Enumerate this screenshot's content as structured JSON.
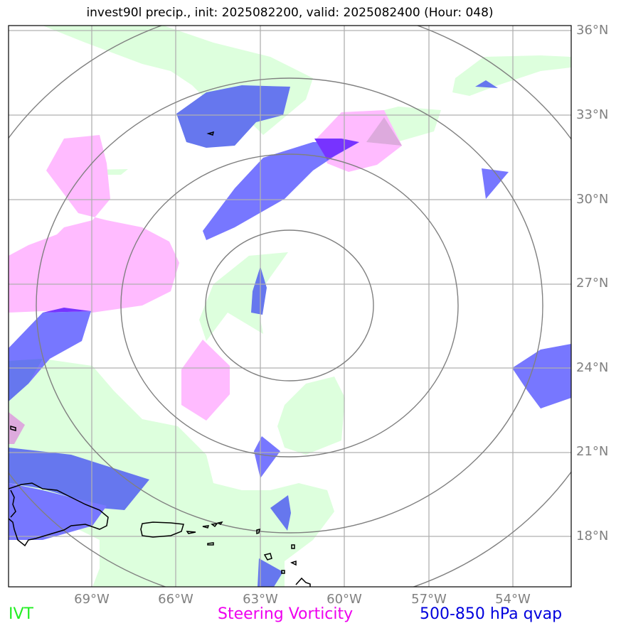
{
  "title": "invest90l precip., init: 2025082200, valid: 2025082400 (Hour: 048)",
  "lat_labels": [
    "36°N",
    "33°N",
    "30°N",
    "27°N",
    "24°N",
    "21°N",
    "18°N"
  ],
  "lon_labels": [
    "69°W",
    "66°W",
    "63°W",
    "60°W",
    "57°W",
    "54°W"
  ],
  "legend": {
    "ivt": "IVT",
    "vorticity": "Steering Vorticity",
    "qvap": "500-850 hPa qvap"
  },
  "colors": {
    "ivt": "#22ee22",
    "vorticity": "#ee00ee",
    "qvap": "#0000dd",
    "ivt_fill": "#ddffdd",
    "vorticity_fill": "#ffbbff",
    "qvap_fill": "#7777ff",
    "grid": "#b0b0b0",
    "range_rings": "#808080"
  }
}
